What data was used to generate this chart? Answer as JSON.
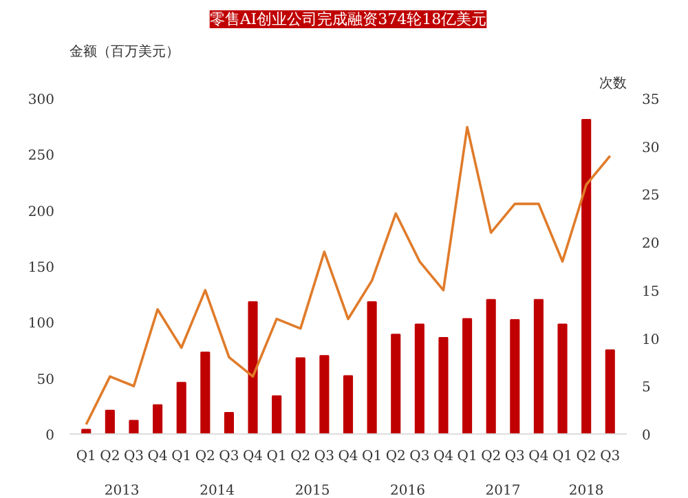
{
  "chart_data": {
    "type": "bar",
    "title": "零售AI创业公司完成融资374轮18亿美元",
    "ylabel": "金额（百万美元）",
    "y2label": "次数",
    "categories": [
      "Q1",
      "Q2",
      "Q3",
      "Q4",
      "Q1",
      "Q2",
      "Q3",
      "Q4",
      "Q1",
      "Q2",
      "Q3",
      "Q4",
      "Q1",
      "Q2",
      "Q3",
      "Q4",
      "Q1",
      "Q2",
      "Q3",
      "Q4",
      "Q1",
      "Q2",
      "Q3"
    ],
    "annotations": [
      "2013",
      "2014",
      "2015",
      "2016",
      "2017",
      "2018"
    ],
    "series": [
      {
        "color": "#c00000",
        "values": [
          4,
          21,
          12,
          26,
          46,
          73,
          19,
          118,
          34,
          68,
          70,
          52,
          118,
          89,
          98,
          86,
          103,
          120,
          102,
          120,
          98,
          281,
          75
        ]
      },
      {
        "type": "line",
        "axis": "y2",
        "color": "#e07b2a",
        "values": [
          1,
          6,
          5,
          13,
          9,
          15,
          8,
          6,
          12,
          11,
          19,
          12,
          16,
          23,
          18,
          15,
          32,
          21,
          24,
          24,
          18,
          26,
          29
        ]
      }
    ],
    "ylim": [
      0,
      300
    ],
    "yticks": [
      0,
      50,
      100,
      150,
      200,
      250,
      300
    ],
    "y2lim": [
      0,
      35
    ],
    "y2ticks": [
      0,
      5,
      10,
      15,
      20,
      25,
      30,
      35
    ],
    "grid": false
  }
}
